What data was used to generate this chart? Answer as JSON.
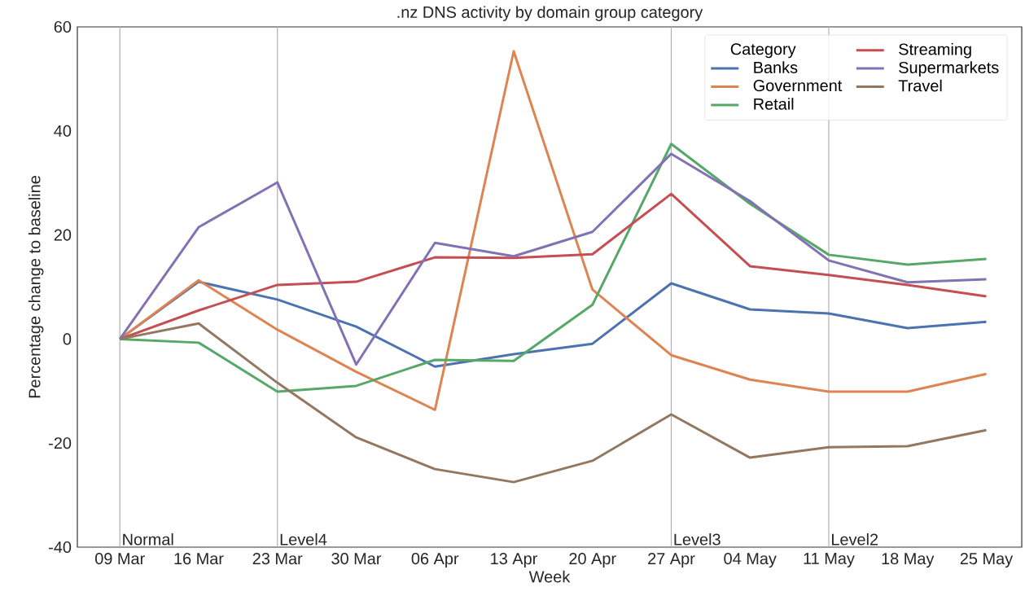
{
  "chart_data": {
    "type": "line",
    "title": ".nz DNS activity by domain group category",
    "xlabel": "Week",
    "ylabel": "Percentage change to baseline",
    "legend_title": "Category",
    "categories": [
      "09 Mar",
      "16 Mar",
      "23 Mar",
      "30 Mar",
      "06 Apr",
      "13 Apr",
      "20 Apr",
      "27 Apr",
      "04 May",
      "11 May",
      "18 May",
      "25 May"
    ],
    "series": [
      {
        "name": "Banks",
        "color": "#4c72b0",
        "values": [
          0,
          11.0,
          7.6,
          2.4,
          -5.3,
          -2.9,
          -0.9,
          10.7,
          5.7,
          4.9,
          2.1,
          3.3
        ]
      },
      {
        "name": "Government",
        "color": "#dd8452",
        "values": [
          0,
          11.3,
          1.8,
          -6.3,
          -13.6,
          55.3,
          9.5,
          -3.1,
          -7.8,
          -10.1,
          -10.1,
          -6.7
        ]
      },
      {
        "name": "Retail",
        "color": "#55a868",
        "values": [
          0,
          -0.7,
          -10.1,
          -9.0,
          -4.0,
          -4.2,
          6.6,
          37.5,
          26.0,
          16.2,
          14.3,
          15.4
        ]
      },
      {
        "name": "Streaming",
        "color": "#c44e52",
        "values": [
          0,
          5.5,
          10.4,
          11.0,
          15.7,
          15.6,
          16.3,
          27.9,
          14.0,
          12.3,
          10.4,
          8.2
        ]
      },
      {
        "name": "Supermarkets",
        "color": "#8172b3",
        "values": [
          0,
          21.5,
          30.1,
          -4.9,
          18.5,
          15.9,
          20.6,
          35.6,
          26.5,
          15.1,
          10.9,
          11.5
        ]
      },
      {
        "name": "Travel",
        "color": "#937860",
        "values": [
          0,
          3.0,
          -8.4,
          -18.9,
          -25.0,
          -27.5,
          -23.4,
          -14.5,
          -22.8,
          -20.8,
          -20.6,
          -17.5
        ]
      }
    ],
    "ylim": [
      -40,
      60
    ],
    "yticks": [
      -40,
      -20,
      0,
      20,
      40,
      60
    ],
    "ref_lines": [
      {
        "axis": "x",
        "value": "09 Mar",
        "label": "Normal",
        "color": "#b0b0b0"
      },
      {
        "axis": "x",
        "value": "23 Mar",
        "label": "Level4",
        "color": "#b0b0b0"
      },
      {
        "axis": "x",
        "value": "27 Apr",
        "label": "Level3",
        "color": "#b0b0b0"
      },
      {
        "axis": "x",
        "value": "11 May",
        "label": "Level2",
        "color": "#b0b0b0"
      }
    ],
    "legend": "top right",
    "grid": false
  }
}
